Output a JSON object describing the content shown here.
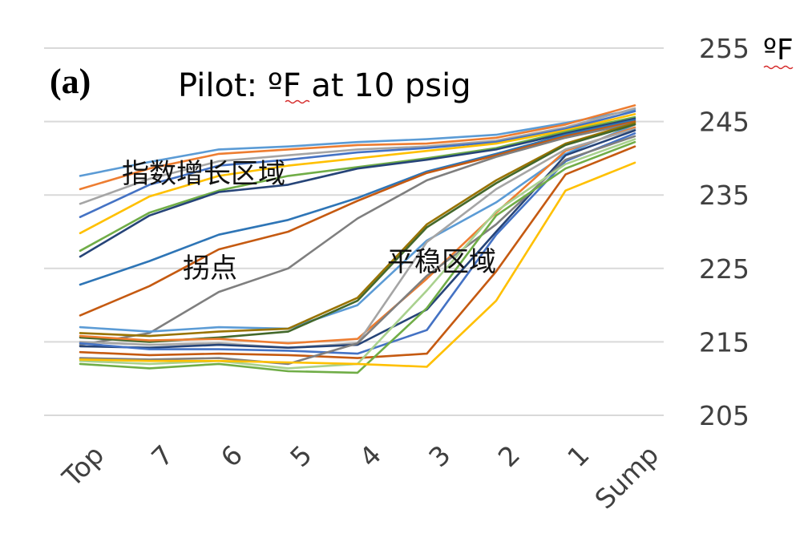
{
  "chart_data": {
    "type": "line",
    "panel_label": "(a)",
    "title": "Pilot:  ºF at 10 psig",
    "unit_label": "ºF",
    "categories": [
      "Top",
      "7",
      "6",
      "5",
      "4",
      "3",
      "2",
      "1",
      "Sump"
    ],
    "ylim": [
      205,
      255
    ],
    "yticks": [
      205,
      215,
      225,
      235,
      245,
      255
    ],
    "grid": true,
    "legend": "none",
    "annotations": [
      {
        "text": "指数增长区域",
        "x": "7",
        "y": 240.5
      },
      {
        "text": "拐点",
        "x": "6",
        "y": 225.5
      },
      {
        "text": "平稳区域",
        "x": "3",
        "y": 226.5
      }
    ],
    "series": [
      {
        "color": "#5b9bd5",
        "values": [
          237.6,
          239.5,
          241.2,
          241.6,
          242.2,
          242.6,
          243.2,
          244.8,
          246.6
        ]
      },
      {
        "color": "#ed7d31",
        "values": [
          235.8,
          238.6,
          240.6,
          241.2,
          241.8,
          242.0,
          242.8,
          244.6,
          247.2
        ]
      },
      {
        "color": "#a5a5a5",
        "values": [
          233.8,
          237.2,
          239.6,
          240.4,
          241.2,
          241.6,
          242.4,
          244.2,
          246.8
        ]
      },
      {
        "color": "#4472c4",
        "values": [
          232.0,
          236.4,
          239.0,
          239.8,
          240.8,
          241.4,
          242.2,
          244.0,
          246.4
        ]
      },
      {
        "color": "#ffc000",
        "values": [
          229.8,
          234.8,
          237.6,
          239.0,
          240.0,
          241.0,
          242.0,
          243.8,
          246.0
        ]
      },
      {
        "color": "#70ad47",
        "values": [
          227.4,
          232.6,
          235.6,
          237.6,
          238.8,
          240.0,
          241.4,
          243.6,
          245.6
        ]
      },
      {
        "color": "#264478",
        "values": [
          226.6,
          232.2,
          235.4,
          236.4,
          238.6,
          239.8,
          241.2,
          243.4,
          245.4
        ]
      },
      {
        "color": "#2e75b6",
        "values": [
          222.8,
          226.0,
          229.6,
          231.6,
          234.6,
          238.2,
          240.6,
          243.2,
          245.2
        ]
      },
      {
        "color": "#c55a11",
        "values": [
          218.6,
          222.6,
          227.6,
          230.0,
          234.2,
          238.0,
          240.4,
          243.0,
          245.0
        ]
      },
      {
        "color": "#7f7f7f",
        "values": [
          214.6,
          216.2,
          221.8,
          225.0,
          231.8,
          237.0,
          240.2,
          242.8,
          244.8
        ]
      },
      {
        "color": "#5b9bd5",
        "values": [
          217.0,
          216.4,
          217.0,
          216.8,
          220.0,
          228.8,
          234.0,
          240.6,
          244.6
        ]
      },
      {
        "color": "#997300",
        "values": [
          216.2,
          215.8,
          216.4,
          216.8,
          221.0,
          231.0,
          237.0,
          242.0,
          244.8
        ]
      },
      {
        "color": "#43682b",
        "values": [
          215.6,
          215.0,
          215.6,
          216.4,
          220.6,
          230.6,
          236.6,
          241.8,
          244.6
        ]
      },
      {
        "color": "#ed7d31",
        "values": [
          215.8,
          215.2,
          215.4,
          214.8,
          215.4,
          223.6,
          232.6,
          241.0,
          244.2
        ]
      },
      {
        "color": "#a5a5a5",
        "values": [
          215.0,
          214.6,
          214.8,
          214.2,
          214.8,
          228.6,
          235.8,
          241.2,
          244.0
        ]
      },
      {
        "color": "#264478",
        "values": [
          214.4,
          214.2,
          214.6,
          214.2,
          214.6,
          219.4,
          230.0,
          240.4,
          243.8
        ]
      },
      {
        "color": "#4472c4",
        "values": [
          214.8,
          214.0,
          214.0,
          213.8,
          213.4,
          216.6,
          229.6,
          239.6,
          243.4
        ]
      },
      {
        "color": "#c55a11",
        "values": [
          213.6,
          213.2,
          213.4,
          213.2,
          212.8,
          213.4,
          224.6,
          237.8,
          241.6
        ]
      },
      {
        "color": "#7f7f7f",
        "values": [
          212.8,
          212.6,
          212.8,
          212.0,
          214.8,
          224.0,
          231.0,
          239.8,
          243.0
        ]
      },
      {
        "color": "#a9d18e",
        "values": [
          212.4,
          212.0,
          212.4,
          211.4,
          212.0,
          222.0,
          232.8,
          239.2,
          242.6
        ]
      },
      {
        "color": "#70ad47",
        "values": [
          212.0,
          211.4,
          212.0,
          211.0,
          210.8,
          219.6,
          232.2,
          238.6,
          242.2
        ]
      },
      {
        "color": "#ffc000",
        "values": [
          212.6,
          212.4,
          212.4,
          212.2,
          212.0,
          211.6,
          220.6,
          235.6,
          239.4
        ]
      }
    ]
  }
}
